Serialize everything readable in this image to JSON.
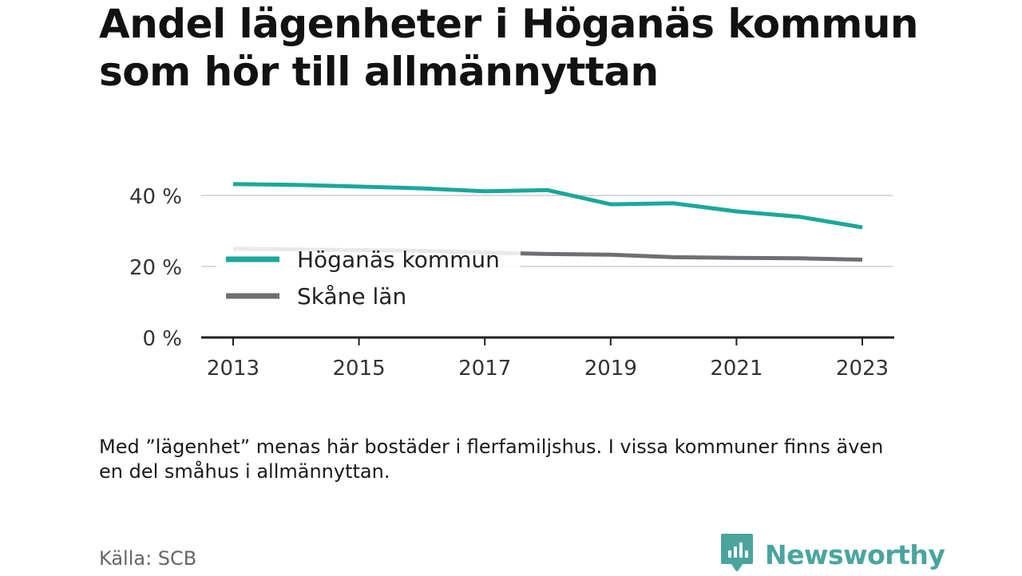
{
  "title": "Andel lägenheter i Höganäs kommun som hör till allmännyttan",
  "note": "Med ”lägenhet” menas här bostäder i flerfamiljshus. I vissa kommuner finns även en del småhus i allmännyttan.",
  "source": "Källa: SCB",
  "brand": {
    "name": "Newsworthy",
    "icon": "newsworthy-logo-icon",
    "color": "#4aa59f"
  },
  "colors": {
    "hoganas": "#1aa89b",
    "skane": "#6e6e73",
    "grid": "#d9d9d9",
    "axis": "#222222"
  },
  "chart_data": {
    "type": "line",
    "x": [
      2013,
      2014,
      2015,
      2016,
      2017,
      2018,
      2019,
      2020,
      2021,
      2022,
      2023
    ],
    "x_ticks": [
      "2013",
      "2015",
      "2017",
      "2019",
      "2021",
      "2023"
    ],
    "y_ticks": [
      "0 %",
      "20 %",
      "40 %"
    ],
    "ylim": [
      0,
      40
    ],
    "grid": true,
    "legend_position": "center-left",
    "series": [
      {
        "name": "Höganäs kommun",
        "color": "#1aa89b",
        "values": [
          43.2,
          43.0,
          42.5,
          42.0,
          41.2,
          41.5,
          37.5,
          37.8,
          35.5,
          34.0,
          31.0
        ]
      },
      {
        "name": "Skåne län",
        "color": "#6e6e73",
        "values": [
          25.0,
          24.8,
          24.6,
          24.4,
          23.9,
          23.5,
          23.3,
          22.6,
          22.4,
          22.3,
          21.9
        ]
      }
    ]
  }
}
